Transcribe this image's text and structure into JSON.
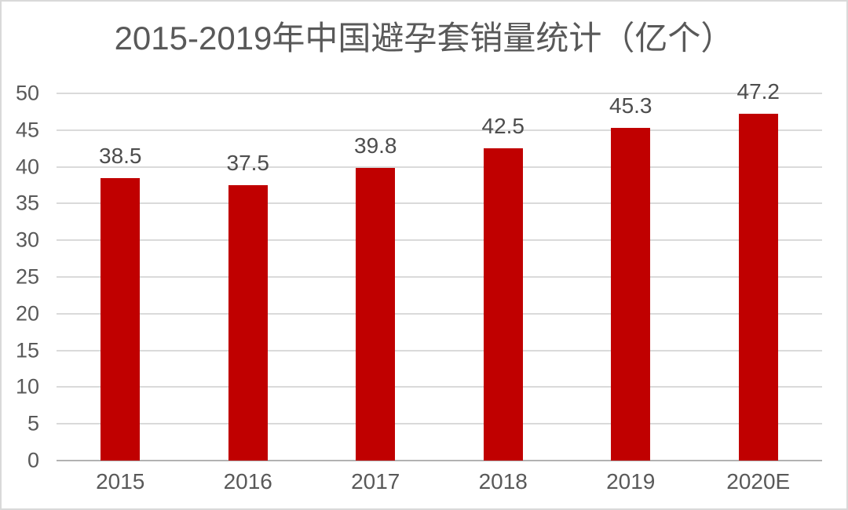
{
  "frame": {
    "background": "#ffffff",
    "border_color": "#d9d9d9"
  },
  "chart_data": {
    "type": "bar",
    "title": "2015-2019年中国避孕套销量统计（亿个）",
    "categories": [
      "2015",
      "2016",
      "2017",
      "2018",
      "2019",
      "2020E"
    ],
    "values": [
      38.5,
      37.5,
      39.8,
      42.5,
      45.3,
      47.2
    ],
    "data_labels": [
      "38.5",
      "37.5",
      "39.8",
      "42.5",
      "45.3",
      "47.2"
    ],
    "xlabel": "",
    "ylabel": "",
    "ylim": [
      0,
      50
    ],
    "yticks": [
      0,
      5,
      10,
      15,
      20,
      25,
      30,
      35,
      40,
      45,
      50
    ],
    "grid": true,
    "legend_position": "none",
    "colors": {
      "bar": "#c00000",
      "title_text": "#595959",
      "axis_text": "#595959",
      "data_label_text": "#4d4d4d",
      "gridline": "#dadada",
      "axis_line": "#b2b2b2"
    }
  }
}
